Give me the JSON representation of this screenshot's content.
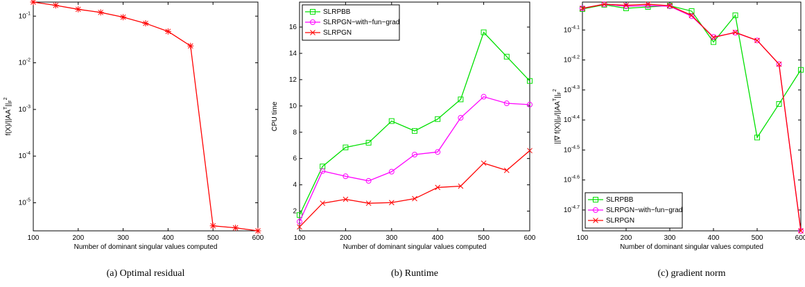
{
  "chart_data": [
    {
      "type": "line",
      "caption": "(a)  Optimal residual",
      "xlabel": "Number of dominant singular values computed",
      "ylabel": "f(X)/||AA^T||_F^2",
      "log_y": true,
      "x": [
        100,
        150,
        200,
        250,
        300,
        350,
        400,
        450,
        500,
        550,
        600
      ],
      "xlim": [
        100,
        600
      ],
      "xticks": [
        100,
        200,
        300,
        400,
        500,
        600
      ],
      "ylim": [
        2.5e-06,
        0.2
      ],
      "yticks": [
        {
          "value": 1e-05,
          "label": "10^-5"
        },
        {
          "value": 0.0001,
          "label": "10^-4"
        },
        {
          "value": 0.001,
          "label": "10^-3"
        },
        {
          "value": 0.01,
          "label": "10^-2"
        },
        {
          "value": 0.1,
          "label": "10^-1"
        }
      ],
      "series": [
        {
          "color": "#ff0000",
          "marker": "asterisk",
          "values": [
            0.2,
            0.17,
            0.14,
            0.12,
            0.095,
            0.07,
            0.047,
            0.023,
            3.2e-06,
            2.9e-06,
            2.5e-06
          ]
        }
      ]
    },
    {
      "type": "line",
      "caption": "(b)  Runtime",
      "xlabel": "Number of dominant singular values computed",
      "ylabel": "CPU time",
      "legend": "upper left",
      "x": [
        100,
        150,
        200,
        250,
        300,
        350,
        400,
        450,
        500,
        550,
        600
      ],
      "xlim": [
        100,
        600
      ],
      "xticks": [
        100,
        200,
        300,
        400,
        500,
        600
      ],
      "ylim": [
        0.5,
        17.9
      ],
      "yticks": [
        2,
        4,
        6,
        8,
        10,
        12,
        14,
        16
      ],
      "series": [
        {
          "name": "SLRPBB",
          "color": "#00e000",
          "marker": "square",
          "values": [
            1.7,
            5.4,
            6.85,
            7.2,
            8.85,
            8.1,
            9.0,
            10.5,
            15.6,
            13.75,
            11.9
          ]
        },
        {
          "name": "SLRPGN−with−fun−grad",
          "color": "#ff00ff",
          "marker": "circle",
          "values": [
            1.2,
            5.05,
            4.65,
            4.3,
            5.0,
            6.3,
            6.5,
            9.1,
            10.7,
            10.2,
            10.1
          ]
        },
        {
          "name": "SLRPGN",
          "color": "#ff0000",
          "marker": "x",
          "values": [
            0.8,
            2.6,
            2.9,
            2.6,
            2.65,
            2.95,
            3.8,
            3.9,
            5.65,
            5.1,
            6.6
          ]
        }
      ]
    },
    {
      "type": "line",
      "caption": "(c)  gradient norm",
      "xlabel": "Number of dominant singular values computed",
      "ylabel": "||∇ f(X)||_F/||AA^T||_F^2",
      "log_y": true,
      "legend": "lower left",
      "x": [
        100,
        150,
        200,
        250,
        300,
        350,
        400,
        450,
        500,
        550,
        600
      ],
      "xlim": [
        100,
        600
      ],
      "xticks": [
        100,
        200,
        300,
        400,
        500,
        600
      ],
      "ylim": [
        1.7e-05,
        9.84e-05
      ],
      "yticks": [
        {
          "value": 1.995e-05,
          "label": "10^-4.7"
        },
        {
          "value": 2.512e-05,
          "label": "10^-4.6"
        },
        {
          "value": 3.162e-05,
          "label": "10^-4.5"
        },
        {
          "value": 3.981e-05,
          "label": "10^-4.4"
        },
        {
          "value": 5.012e-05,
          "label": "10^-4.3"
        },
        {
          "value": 6.31e-05,
          "label": "10^-4.2"
        },
        {
          "value": 7.943e-05,
          "label": "10^-4.1"
        }
      ],
      "series": [
        {
          "name": "SLRPBB",
          "color": "#00e000",
          "marker": "square",
          "values": [
            9.33e-05,
            9.64e-05,
            9.38e-05,
            9.48e-05,
            9.57e-05,
            9.18e-05,
            7.24e-05,
            8.89e-05,
            3.48e-05,
            4.5e-05,
            5.85e-05
          ]
        },
        {
          "name": "SLRPGN−with−fun−grad",
          "color": "#ff00ff",
          "marker": "circle",
          "values": [
            9.38e-05,
            9.68e-05,
            9.53e-05,
            9.57e-05,
            9.53e-05,
            8.83e-05,
            7.53e-05,
            7.78e-05,
            7.33e-05,
            6.11e-05,
            1.7e-05
          ]
        },
        {
          "name": "SLRPGN",
          "color": "#ff0000",
          "marker": "x",
          "values": [
            9.38e-05,
            9.68e-05,
            9.6e-05,
            9.68e-05,
            9.57e-05,
            8.89e-05,
            7.5e-05,
            7.8e-05,
            7.33e-05,
            6.11e-05,
            1.7e-05
          ]
        }
      ]
    }
  ]
}
